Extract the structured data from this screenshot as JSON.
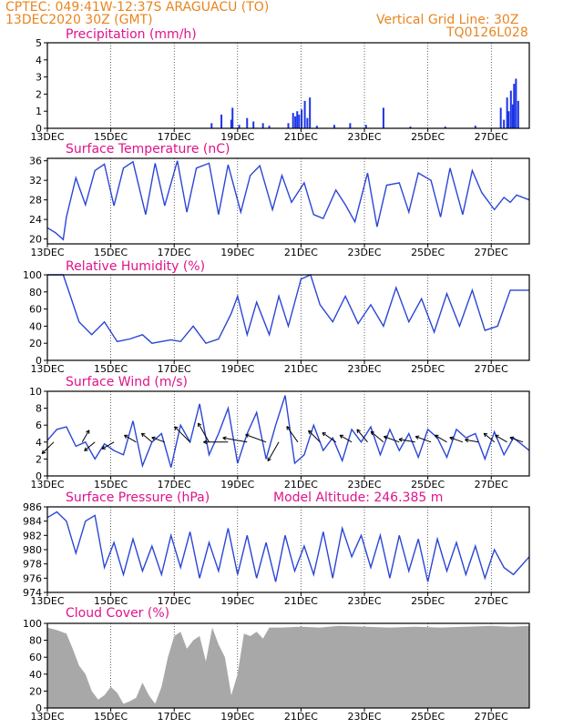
{
  "header": {
    "station_line": "CPTEC:   049:41W-12:37S   ARAGUACU (TO)",
    "date_line": "13DEC2020 30Z (GMT)",
    "grid_line": "Vertical Grid Line: 30Z",
    "run_id": "TQ0126L028"
  },
  "colors": {
    "header": "#e8851e",
    "title": "#e0138c",
    "line": "#2b46d6",
    "bar": "#1c34e6",
    "cloud": "#a8a8a8"
  },
  "x_ticks": [
    "13DEC",
    "15DEC",
    "17DEC",
    "19DEC",
    "21DEC",
    "23DEC",
    "25DEC",
    "27DEC"
  ],
  "x_tick_days": [
    0,
    2,
    4,
    6,
    8,
    10,
    12,
    14
  ],
  "x_range_days": [
    0,
    15.2
  ],
  "chart_data": [
    {
      "type": "bar",
      "title": "Precipitation (mm/h)",
      "ylim": [
        0,
        5
      ],
      "yticks": [
        0,
        1,
        2,
        3,
        4,
        5
      ],
      "x_days": [
        5.18,
        5.49,
        5.8,
        5.84,
        6.05,
        6.3,
        6.5,
        6.8,
        7.0,
        7.6,
        7.75,
        7.82,
        7.88,
        7.94,
        8.02,
        8.12,
        8.2,
        8.28,
        8.5,
        9.05,
        9.55,
        10.05,
        10.6,
        11.45,
        12.55,
        13.5,
        14.3,
        14.4,
        14.5,
        14.55,
        14.62,
        14.68,
        14.72,
        14.78,
        14.85
      ],
      "values": [
        0.3,
        0.8,
        0.5,
        1.2,
        0.2,
        0.6,
        0.4,
        0.3,
        0.15,
        0.3,
        0.9,
        0.7,
        1.0,
        0.8,
        1.1,
        1.6,
        0.6,
        1.8,
        0.15,
        0.2,
        0.3,
        0.2,
        1.2,
        0.1,
        0.1,
        0.15,
        1.2,
        0.5,
        1.8,
        1.0,
        2.2,
        1.4,
        2.6,
        2.9,
        1.6
      ]
    },
    {
      "type": "line",
      "title": "Surface Temperature (nC)",
      "ylim": [
        19,
        36.5
      ],
      "yticks": [
        20,
        24,
        28,
        32,
        36
      ],
      "x_days": [
        0,
        0.25,
        0.5,
        0.6,
        0.9,
        1.2,
        1.5,
        1.8,
        2.1,
        2.4,
        2.7,
        3.1,
        3.4,
        3.7,
        4.1,
        4.4,
        4.7,
        5.1,
        5.4,
        5.7,
        6.1,
        6.4,
        6.7,
        7.1,
        7.4,
        7.7,
        8.1,
        8.4,
        8.7,
        9.1,
        9.4,
        9.7,
        10.1,
        10.4,
        10.7,
        11.1,
        11.4,
        11.7,
        12.1,
        12.4,
        12.7,
        13.1,
        13.4,
        13.7,
        14.1,
        14.4,
        14.6,
        14.8,
        15.2
      ],
      "values": [
        22.3,
        21.3,
        19.9,
        24.5,
        32.5,
        27.0,
        34.0,
        35.3,
        26.8,
        34.5,
        35.8,
        25.0,
        35.5,
        26.8,
        36.0,
        25.5,
        34.5,
        35.5,
        25.0,
        35.2,
        25.5,
        33.0,
        35.0,
        26.0,
        33.0,
        27.5,
        31.5,
        25.0,
        24.2,
        30.0,
        27.0,
        23.5,
        33.5,
        22.5,
        31.0,
        31.5,
        25.5,
        33.5,
        32.0,
        24.5,
        34.5,
        25.0,
        34.0,
        29.5,
        26.0,
        28.5,
        27.5,
        29.0,
        28.0
      ]
    },
    {
      "type": "line",
      "title": "Relative Humidity (%)",
      "ylim": [
        0,
        100
      ],
      "yticks": [
        0,
        20,
        40,
        60,
        80,
        100
      ],
      "x_days": [
        0,
        0.5,
        1.0,
        1.4,
        1.8,
        2.2,
        2.6,
        3.0,
        3.3,
        3.6,
        3.9,
        4.2,
        4.6,
        5.0,
        5.4,
        5.8,
        6.0,
        6.3,
        6.6,
        7.0,
        7.3,
        7.6,
        8.0,
        8.3,
        8.6,
        9.0,
        9.4,
        9.8,
        10.2,
        10.6,
        11.0,
        11.4,
        11.8,
        12.2,
        12.6,
        13.0,
        13.4,
        13.8,
        14.2,
        14.6,
        15.2
      ],
      "values": [
        100,
        100,
        45,
        30,
        45,
        22,
        25,
        30,
        20,
        22,
        24,
        22,
        40,
        20,
        25,
        55,
        75,
        30,
        68,
        30,
        75,
        40,
        95,
        100,
        65,
        45,
        75,
        43,
        65,
        40,
        85,
        45,
        72,
        33,
        78,
        40,
        82,
        35,
        40,
        82,
        82
      ]
    },
    {
      "type": "line",
      "title": "Surface Wind (m/s)",
      "ylim": [
        0,
        10
      ],
      "yticks": [
        0,
        2,
        4,
        6,
        8,
        10
      ],
      "x_days": [
        0,
        0.3,
        0.6,
        0.9,
        1.2,
        1.5,
        1.8,
        2.1,
        2.4,
        2.7,
        3.0,
        3.3,
        3.6,
        3.9,
        4.2,
        4.5,
        4.8,
        5.1,
        5.4,
        5.7,
        6.0,
        6.3,
        6.6,
        6.9,
        7.2,
        7.5,
        7.8,
        8.1,
        8.4,
        8.7,
        9.0,
        9.3,
        9.6,
        9.9,
        10.2,
        10.5,
        10.8,
        11.1,
        11.4,
        11.7,
        12.0,
        12.3,
        12.6,
        12.9,
        13.2,
        13.5,
        13.8,
        14.1,
        14.4,
        14.7,
        15.2
      ],
      "values": [
        4.2,
        5.5,
        5.8,
        3.5,
        4.0,
        2.0,
        3.8,
        3.0,
        2.5,
        6.5,
        1.2,
        4.0,
        5.0,
        1.0,
        6.0,
        4.0,
        8.5,
        2.5,
        5.0,
        8.0,
        1.5,
        5.0,
        7.5,
        2.0,
        6.0,
        9.5,
        1.5,
        2.5,
        6.0,
        3.0,
        4.5,
        1.8,
        5.5,
        4.0,
        5.8,
        2.5,
        5.5,
        3.0,
        5.0,
        2.2,
        5.5,
        4.5,
        2.2,
        5.5,
        4.5,
        5.0,
        2.0,
        5.2,
        2.5,
        4.5,
        3.0
      ],
      "arrow_x_days": [
        0.2,
        1.1,
        1.5,
        2.1,
        2.8,
        3.3,
        3.7,
        4.5,
        5.1,
        5.7,
        6.3,
        6.9,
        7.3,
        7.9,
        8.6,
        9.1,
        9.6,
        10.1,
        10.6,
        11.1,
        11.6,
        12.1,
        12.6,
        13.1,
        13.6,
        14.1,
        14.5,
        15.0
      ],
      "arrow_speed": [
        4,
        3,
        3,
        3,
        3,
        3,
        3,
        6,
        6,
        7,
        7,
        6,
        6,
        5,
        4,
        4,
        3,
        4,
        4,
        4,
        4,
        4,
        3,
        3,
        3,
        3,
        3,
        3
      ],
      "arrow_dir_deg": [
        135,
        300,
        140,
        150,
        210,
        220,
        200,
        225,
        240,
        180,
        190,
        200,
        120,
        235,
        225,
        215,
        210,
        230,
        220,
        200,
        190,
        200,
        210,
        200,
        190,
        220,
        210,
        200
      ]
    },
    {
      "type": "line",
      "title": "Surface Pressure (hPa)",
      "annotation": "Model Altitude: 246.385 m",
      "ylim": [
        974,
        986
      ],
      "yticks": [
        974,
        976,
        978,
        980,
        982,
        984,
        986
      ],
      "x_days": [
        0,
        0.3,
        0.6,
        0.9,
        1.2,
        1.5,
        1.8,
        2.1,
        2.4,
        2.7,
        3.0,
        3.3,
        3.6,
        3.9,
        4.2,
        4.5,
        4.8,
        5.1,
        5.4,
        5.7,
        6.0,
        6.3,
        6.6,
        6.9,
        7.2,
        7.5,
        7.8,
        8.1,
        8.4,
        8.7,
        9.0,
        9.3,
        9.6,
        9.9,
        10.2,
        10.5,
        10.8,
        11.1,
        11.4,
        11.7,
        12.0,
        12.3,
        12.6,
        12.9,
        13.2,
        13.5,
        13.8,
        14.1,
        14.4,
        14.7,
        15.2
      ],
      "values": [
        984.5,
        985.3,
        984.0,
        979.5,
        984.0,
        984.8,
        977.5,
        981.0,
        976.5,
        981.5,
        977.0,
        980.5,
        976.5,
        982.0,
        977.5,
        982.5,
        976.0,
        981.0,
        977.0,
        983.0,
        976.5,
        982.0,
        976.0,
        981.0,
        975.5,
        982.0,
        977.0,
        980.5,
        976.5,
        982.5,
        976.0,
        983.0,
        979.0,
        982.0,
        977.5,
        982.0,
        976.0,
        982.0,
        977.0,
        981.5,
        975.5,
        981.5,
        977.0,
        981.0,
        976.5,
        980.5,
        976.0,
        980.0,
        977.5,
        976.5,
        979.0
      ]
    },
    {
      "type": "area",
      "title": "Cloud Cover (%)",
      "ylim": [
        0,
        100
      ],
      "yticks": [
        0,
        20,
        40,
        60,
        80,
        100
      ],
      "x_days": [
        0,
        0.3,
        0.6,
        0.8,
        1.0,
        1.2,
        1.4,
        1.6,
        1.8,
        2.0,
        2.2,
        2.4,
        2.6,
        2.8,
        3.0,
        3.2,
        3.4,
        3.6,
        3.8,
        4.0,
        4.2,
        4.4,
        4.6,
        4.8,
        5.0,
        5.2,
        5.4,
        5.6,
        5.8,
        6.0,
        6.2,
        6.4,
        6.6,
        6.8,
        7.0,
        7.4,
        8.0,
        8.6,
        9.2,
        10.0,
        10.8,
        11.6,
        12.4,
        13.2,
        14.0,
        14.6,
        15.2
      ],
      "values": [
        95,
        92,
        88,
        70,
        50,
        40,
        20,
        10,
        15,
        25,
        18,
        5,
        8,
        12,
        30,
        15,
        5,
        25,
        60,
        85,
        90,
        70,
        80,
        85,
        55,
        95,
        75,
        60,
        15,
        40,
        88,
        85,
        90,
        82,
        95,
        95,
        96,
        95,
        97,
        96,
        95,
        96,
        95,
        96,
        97,
        96,
        97
      ]
    }
  ],
  "panels_meta": []
}
